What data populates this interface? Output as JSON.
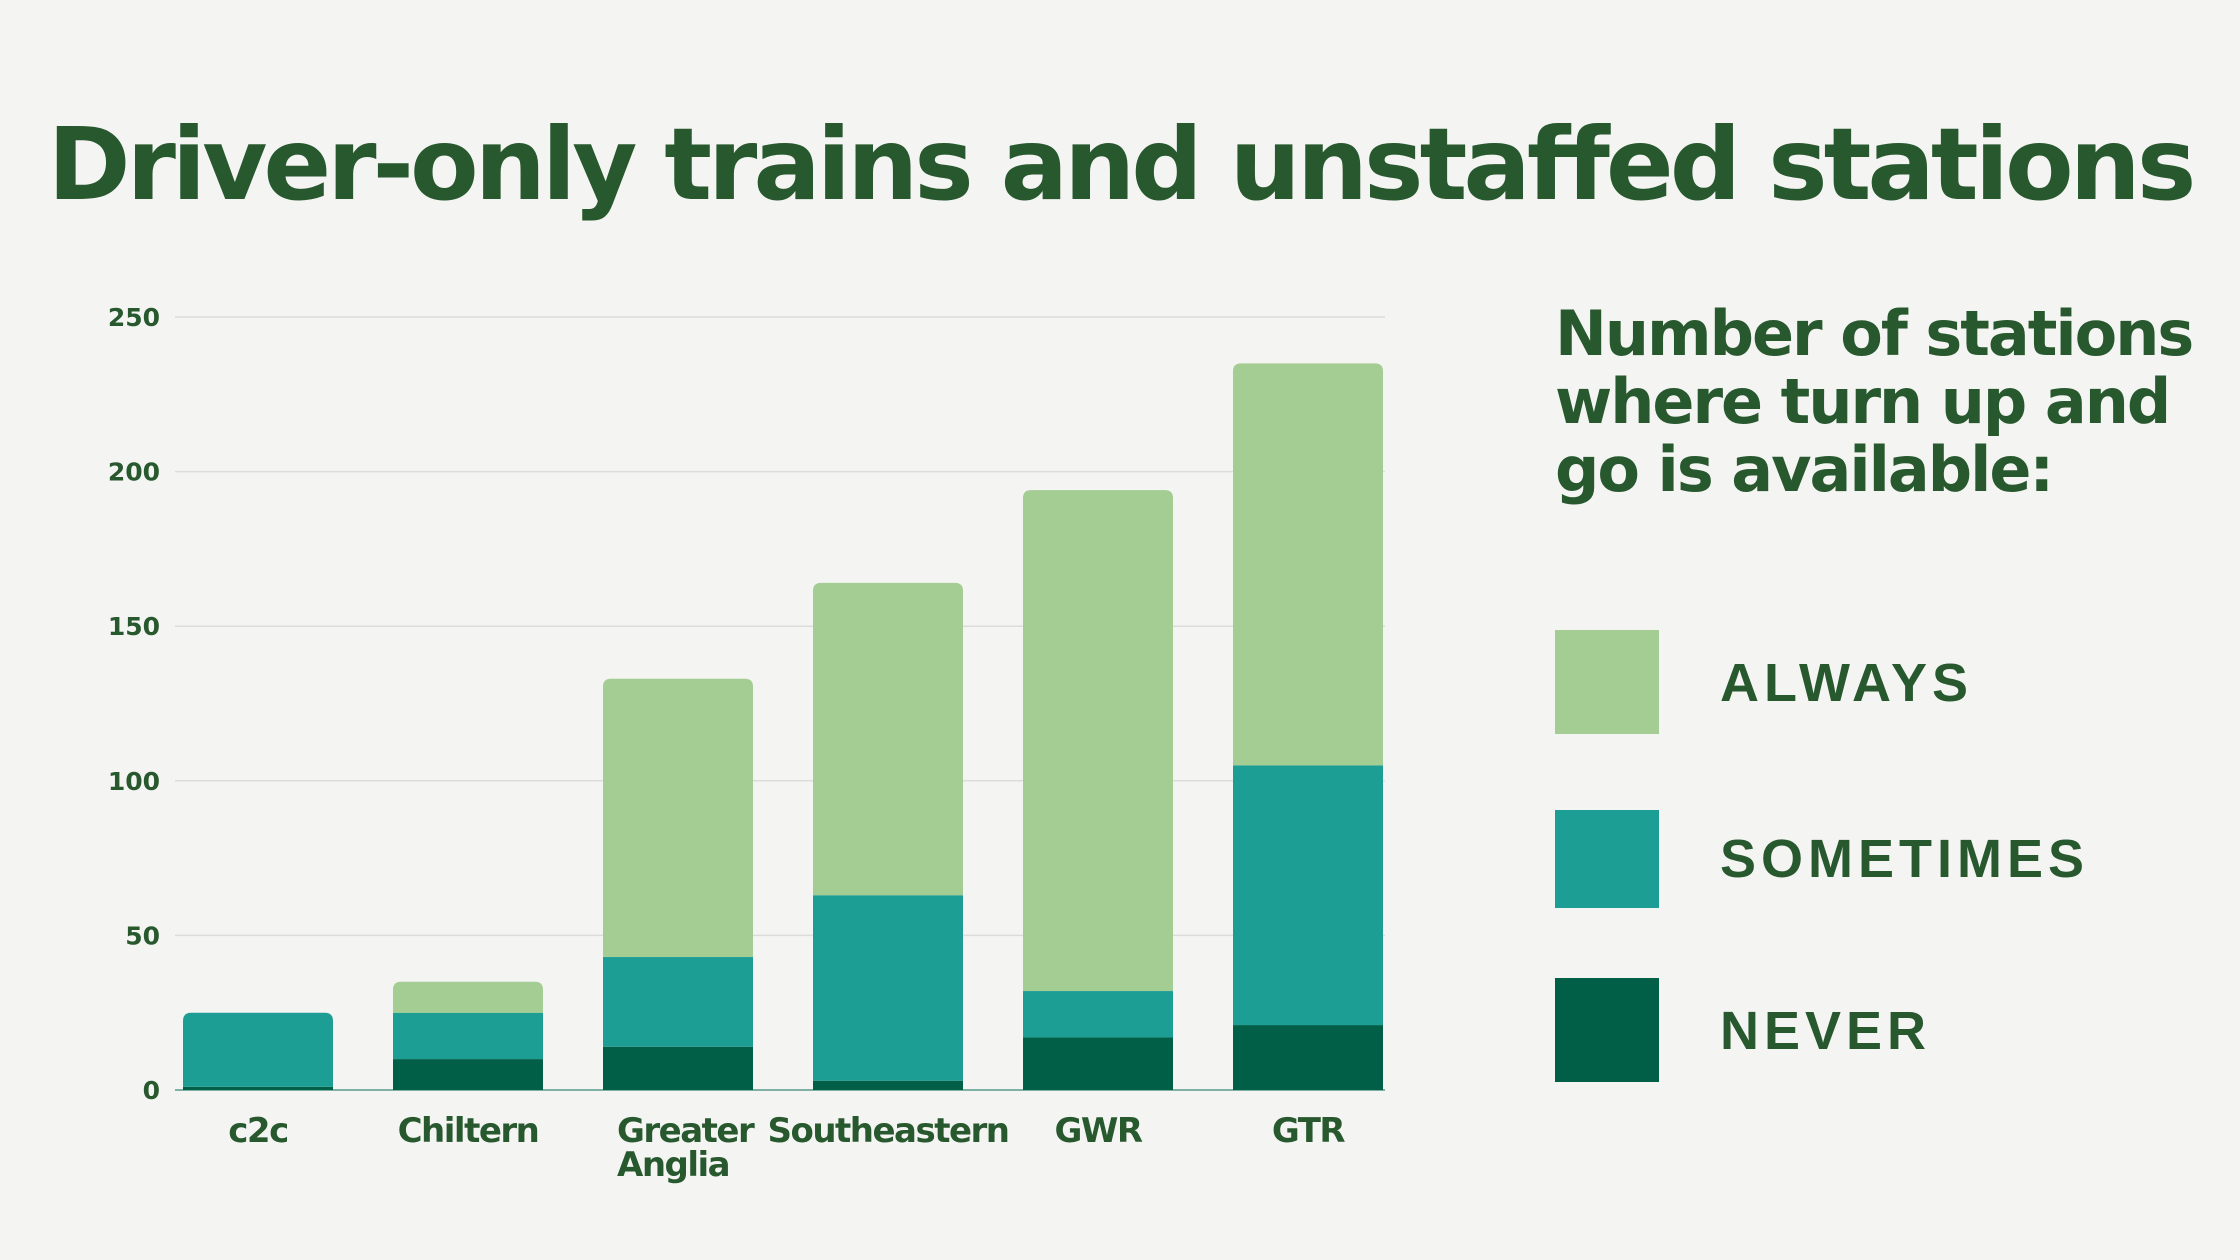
{
  "title": "Driver-only trains and unstaffed stations",
  "legend": {
    "title": "Number of stations where turn up and go is available:",
    "items": [
      {
        "label": "ALWAYS",
        "color": "#a4cd93"
      },
      {
        "label": "SOMETIMES",
        "color": "#1c9e95"
      },
      {
        "label": "NEVER",
        "color": "#025f47"
      }
    ]
  },
  "chart_data": {
    "type": "bar",
    "stacked": true,
    "categories": [
      "c2c",
      "Chiltern",
      "Greater Anglia",
      "Southeastern",
      "GWR",
      "GTR"
    ],
    "series": [
      {
        "name": "NEVER",
        "color": "#025f47",
        "values": [
          1,
          10,
          14,
          3,
          17,
          21
        ]
      },
      {
        "name": "SOMETIMES",
        "color": "#1c9e95",
        "values": [
          24,
          15,
          29,
          60,
          15,
          84
        ]
      },
      {
        "name": "ALWAYS",
        "color": "#a4cd93",
        "values": [
          0,
          10,
          90,
          101,
          162,
          130
        ]
      }
    ],
    "y_ticks": [
      0,
      50,
      100,
      150,
      200,
      250
    ],
    "ylim": [
      0,
      250
    ],
    "grid": true,
    "xlabel": "",
    "ylabel": ""
  }
}
